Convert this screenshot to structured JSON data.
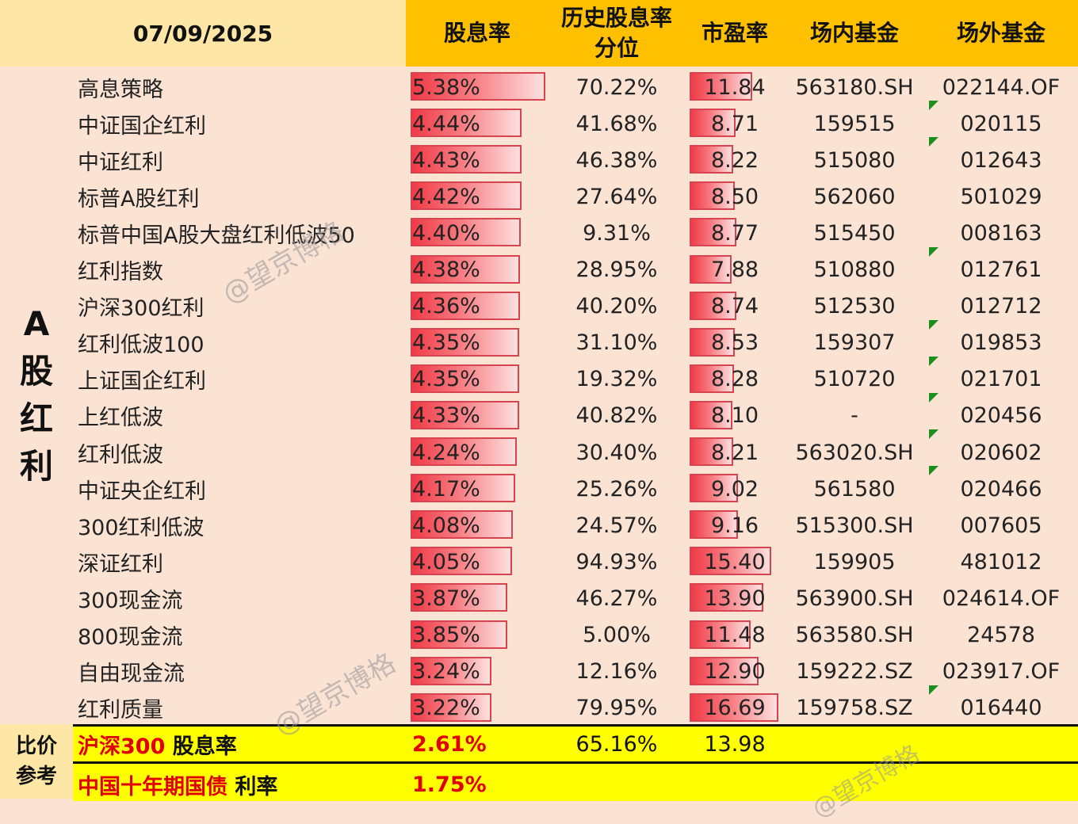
{
  "header": {
    "date": "07/09/2025",
    "col_yield": "股息率",
    "col_hist_line1": "历史股息率",
    "col_hist_line2": "分位",
    "col_pe": "市盈率",
    "col_onex": "场内基金",
    "col_offex": "场外基金"
  },
  "category": [
    "A",
    "股",
    "红",
    "利"
  ],
  "rows": [
    {
      "name": "高息策略",
      "yield": "5.38%",
      "yield_value": 5.38,
      "hist": "70.22%",
      "pe": "11.84",
      "pe_value": 11.84,
      "onex": "563180.SH",
      "offex": "022144.OF",
      "flag": false
    },
    {
      "name": "中证国企红利",
      "yield": "4.44%",
      "yield_value": 4.44,
      "hist": "41.68%",
      "pe": "8.71",
      "pe_value": 8.71,
      "onex": "159515",
      "offex": "020115",
      "flag": true
    },
    {
      "name": "中证红利",
      "yield": "4.43%",
      "yield_value": 4.43,
      "hist": "46.38%",
      "pe": "8.22",
      "pe_value": 8.22,
      "onex": "515080",
      "offex": "012643",
      "flag": true
    },
    {
      "name": "标普A股红利",
      "yield": "4.42%",
      "yield_value": 4.42,
      "hist": "27.64%",
      "pe": "8.50",
      "pe_value": 8.5,
      "onex": "562060",
      "offex": "501029",
      "flag": false
    },
    {
      "name": "标普中国A股大盘红利低波50",
      "yield": "4.40%",
      "yield_value": 4.4,
      "hist": "9.31%",
      "pe": "8.77",
      "pe_value": 8.77,
      "onex": "515450",
      "offex": "008163",
      "flag": false
    },
    {
      "name": "红利指数",
      "yield": "4.38%",
      "yield_value": 4.38,
      "hist": "28.95%",
      "pe": "7.88",
      "pe_value": 7.88,
      "onex": "510880",
      "offex": "012761",
      "flag": true
    },
    {
      "name": "沪深300红利",
      "yield": "4.36%",
      "yield_value": 4.36,
      "hist": "40.20%",
      "pe": "8.74",
      "pe_value": 8.74,
      "onex": "512530",
      "offex": "012712",
      "flag": false
    },
    {
      "name": "红利低波100",
      "yield": "4.35%",
      "yield_value": 4.35,
      "hist": "31.10%",
      "pe": "8.53",
      "pe_value": 8.53,
      "onex": "159307",
      "offex": "019853",
      "flag": true
    },
    {
      "name": "上证国企红利",
      "yield": "4.35%",
      "yield_value": 4.35,
      "hist": "19.32%",
      "pe": "8.28",
      "pe_value": 8.28,
      "onex": "510720",
      "offex": "021701",
      "flag": true
    },
    {
      "name": "上红低波",
      "yield": "4.33%",
      "yield_value": 4.33,
      "hist": "40.82%",
      "pe": "8.10",
      "pe_value": 8.1,
      "onex": "-",
      "offex": "020456",
      "flag": true
    },
    {
      "name": "红利低波",
      "yield": "4.24%",
      "yield_value": 4.24,
      "hist": "30.40%",
      "pe": "8.21",
      "pe_value": 8.21,
      "onex": "563020.SH",
      "offex": "020602",
      "flag": true
    },
    {
      "name": "中证央企红利",
      "yield": "4.17%",
      "yield_value": 4.17,
      "hist": "25.26%",
      "pe": "9.02",
      "pe_value": 9.02,
      "onex": "561580",
      "offex": "020466",
      "flag": true
    },
    {
      "name": "300红利低波",
      "yield": "4.08%",
      "yield_value": 4.08,
      "hist": "24.57%",
      "pe": "9.16",
      "pe_value": 9.16,
      "onex": "515300.SH",
      "offex": "007605",
      "flag": false
    },
    {
      "name": "深证红利",
      "yield": "4.05%",
      "yield_value": 4.05,
      "hist": "94.93%",
      "pe": "15.40",
      "pe_value": 15.4,
      "onex": "159905",
      "offex": "481012",
      "flag": false
    },
    {
      "name": "300现金流",
      "yield": "3.87%",
      "yield_value": 3.87,
      "hist": "46.27%",
      "pe": "13.90",
      "pe_value": 13.9,
      "onex": "563900.SH",
      "offex": "024614.OF",
      "flag": false
    },
    {
      "name": "800现金流",
      "yield": "3.85%",
      "yield_value": 3.85,
      "hist": "5.00%",
      "pe": "11.48",
      "pe_value": 11.48,
      "onex": "563580.SH",
      "offex": "24578",
      "flag": false
    },
    {
      "name": "自由现金流",
      "yield": "3.24%",
      "yield_value": 3.24,
      "hist": "12.16%",
      "pe": "12.90",
      "pe_value": 12.9,
      "onex": "159222.SZ",
      "offex": "023917.OF",
      "flag": false
    },
    {
      "name": "红利质量",
      "yield": "3.22%",
      "yield_value": 3.22,
      "hist": "79.95%",
      "pe": "16.69",
      "pe_value": 16.69,
      "onex": "159758.SZ",
      "offex": "016440",
      "flag": true
    }
  ],
  "reference": {
    "label_line1": "比价",
    "label_line2": "参考",
    "hs300_name": "沪深300",
    "hs300_suffix": " 股息率",
    "hs300_yield": "2.61%",
    "hs300_hist": "65.16%",
    "hs300_pe": "13.98",
    "bond_name": "中国十年期国债",
    "bond_suffix": " 利率",
    "bond_rate": "1.75%"
  },
  "watermark": "@望京博格",
  "colors": {
    "header_gold": "#ffc000",
    "date_bg": "#fde6a6",
    "body_bg": "#fbe3d4",
    "bar_red": "#ef3b47",
    "footer_yellow": "#ffff00",
    "ref_red": "#e00000",
    "flag_green": "#1e8f1e"
  }
}
